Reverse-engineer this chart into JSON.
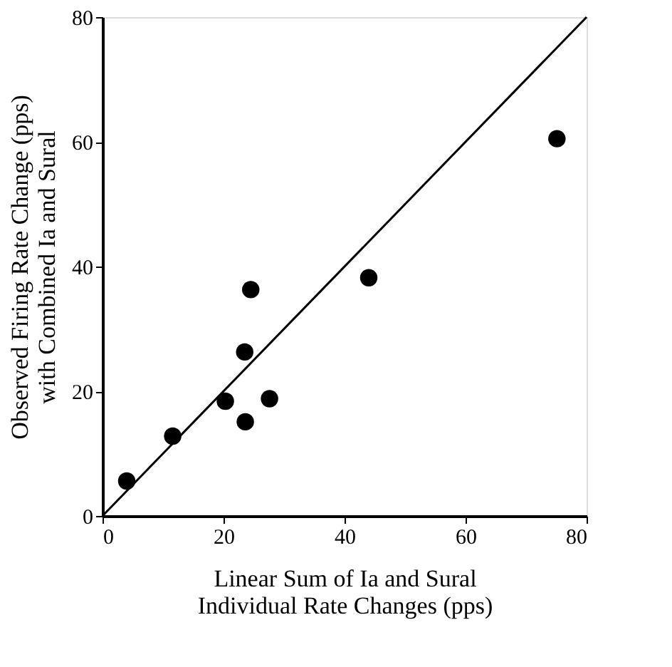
{
  "chart_data": {
    "type": "scatter",
    "xlabel": "Linear Sum of Ia and Sural\nIndividual Rate Changes (pps)",
    "ylabel": "Observed Firing Rate Change (pps)\nwith Combined Ia and Sural",
    "xlim": [
      0,
      80
    ],
    "ylim": [
      0,
      80
    ],
    "xticks": [
      0,
      20,
      40,
      60,
      80
    ],
    "yticks": [
      0,
      20,
      40,
      60,
      80
    ],
    "grid": false,
    "series": [
      {
        "color": "#000000",
        "marker": "circle",
        "x": [
          4.0,
          11.6,
          20.3,
          23.6,
          27.6,
          23.5,
          24.5,
          44.0,
          75.1
        ],
        "values": [
          5.6,
          12.8,
          18.4,
          15.1,
          18.8,
          26.3,
          36.3,
          38.2,
          60.5
        ]
      },
      {
        "type": "line",
        "color": "#000000",
        "line_style": "solid",
        "x": [
          0,
          80
        ],
        "values": [
          0,
          80
        ]
      }
    ]
  }
}
